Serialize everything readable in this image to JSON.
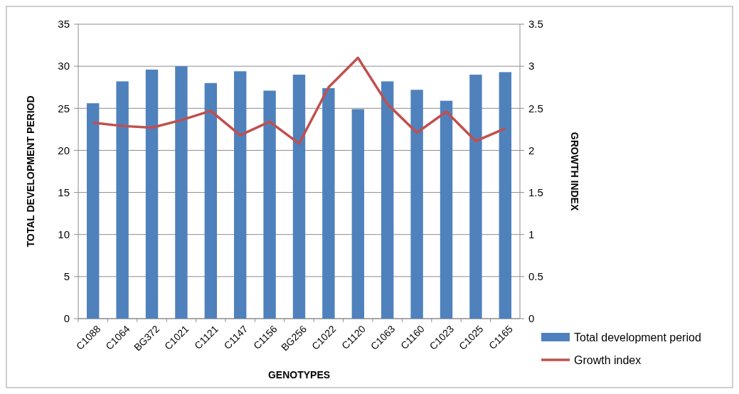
{
  "chart_data": {
    "type": "bar",
    "xlabel": "GENOTYPES",
    "ylabel": "TOTAL DEVELOPMENT PERIOD",
    "y2label": "GROWTH INDEX",
    "categories": [
      "C1088",
      "C1064",
      "BG372",
      "C1021",
      "C1121",
      "C1147",
      "C1156",
      "BG256",
      "C1022",
      "C1120",
      "C1063",
      "C1160",
      "C1023",
      "C1025",
      "C1165"
    ],
    "series": [
      {
        "name": "Total development period",
        "color": "#4f81bd",
        "values": [
          25.6,
          28.2,
          29.6,
          30.0,
          28.0,
          29.4,
          27.1,
          29.0,
          27.4,
          24.9,
          28.2,
          27.2,
          25.9,
          29.0,
          29.3
        ]
      },
      {
        "name": "Growth index",
        "type": "line",
        "axis": "y2",
        "color": "#c0504d",
        "values": [
          2.33,
          2.29,
          2.27,
          2.36,
          2.47,
          2.18,
          2.34,
          2.08,
          2.75,
          3.1,
          2.55,
          2.21,
          2.46,
          2.11,
          2.26
        ]
      }
    ],
    "ylim": [
      0,
      35
    ],
    "yticks": [
      0,
      5,
      10,
      15,
      20,
      25,
      30,
      35
    ],
    "y2lim": [
      0,
      3.5
    ],
    "y2ticks": [
      0,
      0.5,
      1,
      1.5,
      2,
      2.5,
      3,
      3.5
    ],
    "grid": "y",
    "legend": "bottom right",
    "marker": "none",
    "line_style": "solid"
  }
}
